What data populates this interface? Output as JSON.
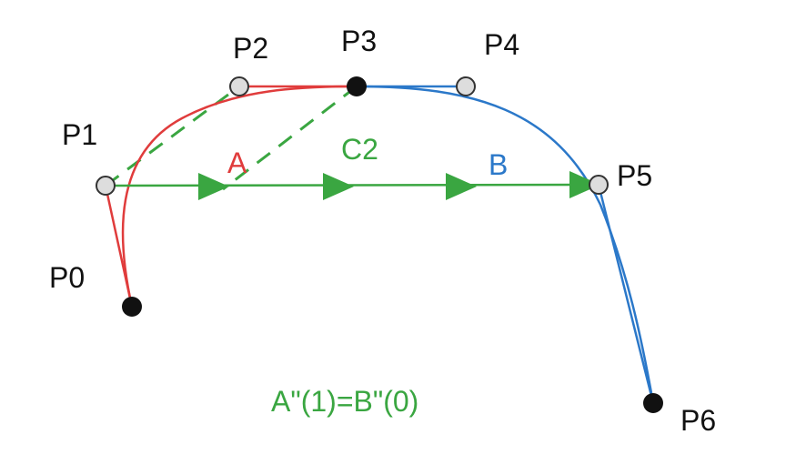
{
  "colors": {
    "curve_a": "#e03c3c",
    "curve_b": "#2b78c9",
    "c2": "#3aa641",
    "point_fill_open": "#dddddd",
    "point_fill_solid": "#111111",
    "text": "#111111"
  },
  "points": {
    "p0": "P0",
    "p1": "P1",
    "p2": "P2",
    "p3": "P3",
    "p4": "P4",
    "p5": "P5",
    "p6": "P6"
  },
  "curves": {
    "a_label": "A",
    "b_label": "B",
    "c2_label": "C2"
  },
  "equation": "A\"(1)=B\"(0)"
}
